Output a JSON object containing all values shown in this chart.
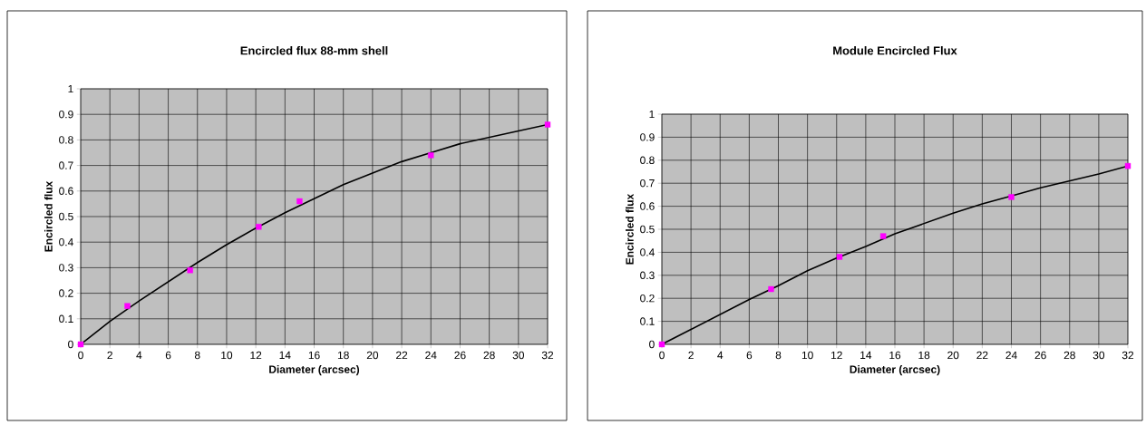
{
  "chart_data": [
    {
      "type": "line",
      "title": "Encircled flux 88-mm shell",
      "xlabel": "Diameter (arcsec)",
      "ylabel": "Encircled flux",
      "xlim": [
        0,
        32
      ],
      "ylim": [
        0,
        1
      ],
      "xticks": [
        0,
        2,
        4,
        6,
        8,
        10,
        12,
        14,
        16,
        18,
        20,
        22,
        24,
        26,
        28,
        30,
        32
      ],
      "yticks": [
        0,
        0.1,
        0.2,
        0.3,
        0.4,
        0.5,
        0.6,
        0.7,
        0.8,
        0.9,
        1
      ],
      "grid": true,
      "series": [
        {
          "type": "line",
          "color": "#000000",
          "marker": "none",
          "x": [
            0,
            2,
            4,
            6,
            8,
            10,
            12,
            14,
            16,
            18,
            20,
            22,
            24,
            26,
            28,
            30,
            32
          ],
          "values": [
            0,
            0.09,
            0.17,
            0.245,
            0.32,
            0.39,
            0.455,
            0.515,
            0.57,
            0.625,
            0.67,
            0.715,
            0.75,
            0.785,
            0.81,
            0.835,
            0.86
          ]
        },
        {
          "type": "scatter",
          "color": "#ff00ff",
          "marker": "square",
          "x": [
            0,
            3.2,
            7.5,
            12.2,
            15,
            24,
            32
          ],
          "values": [
            0,
            0.15,
            0.29,
            0.46,
            0.56,
            0.74,
            0.86
          ]
        }
      ]
    },
    {
      "type": "line",
      "title": "Module Encircled Flux",
      "xlabel": "Diameter (arcsec)",
      "ylabel": "Encircled flux",
      "xlim": [
        0,
        32
      ],
      "ylim": [
        0,
        1
      ],
      "xticks": [
        0,
        2,
        4,
        6,
        8,
        10,
        12,
        14,
        16,
        18,
        20,
        22,
        24,
        26,
        28,
        30,
        32
      ],
      "yticks": [
        0,
        0.1,
        0.2,
        0.3,
        0.4,
        0.5,
        0.6,
        0.7,
        0.8,
        0.9,
        1
      ],
      "grid": true,
      "series": [
        {
          "type": "line",
          "color": "#000000",
          "marker": "none",
          "x": [
            0,
            2,
            4,
            6,
            8,
            10,
            12,
            14,
            16,
            18,
            20,
            22,
            24,
            26,
            28,
            30,
            32
          ],
          "values": [
            0,
            0.065,
            0.13,
            0.195,
            0.255,
            0.32,
            0.375,
            0.425,
            0.48,
            0.525,
            0.57,
            0.61,
            0.645,
            0.68,
            0.71,
            0.74,
            0.775
          ]
        },
        {
          "type": "scatter",
          "color": "#ff00ff",
          "marker": "square",
          "x": [
            0,
            7.5,
            12.2,
            15.2,
            24,
            32
          ],
          "values": [
            0,
            0.24,
            0.38,
            0.47,
            0.64,
            0.775
          ]
        }
      ]
    }
  ]
}
